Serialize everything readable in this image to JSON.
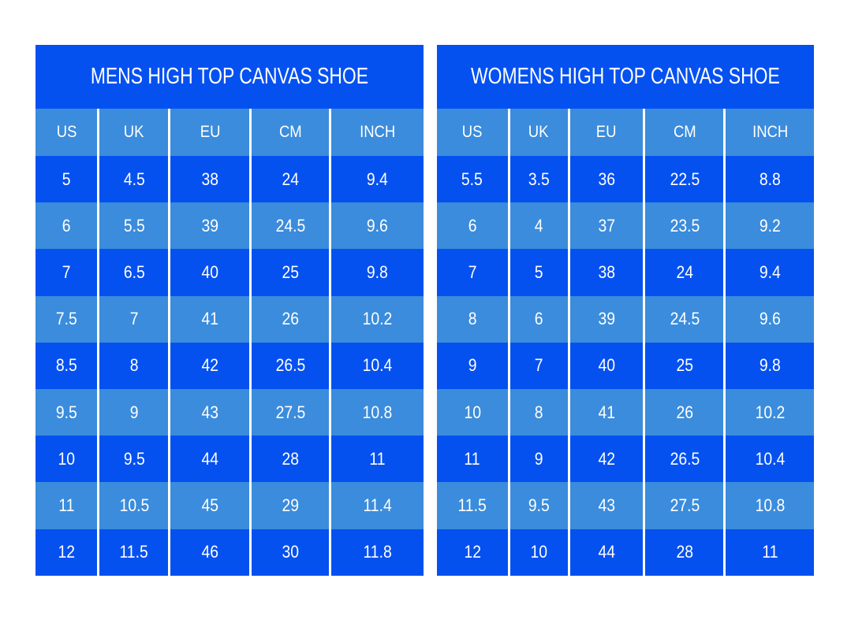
{
  "colors": {
    "dark_blue": "#0551F0",
    "light_blue": "#3B8CDC",
    "text": "#FFFFFF",
    "separator": "#FFFFFF",
    "page_background": "#FFFFFF"
  },
  "chart_data": [
    {
      "type": "table",
      "title": "MENS HIGH TOP CANVAS SHOE",
      "columns": [
        "US",
        "UK",
        "EU",
        "CM",
        "INCH"
      ],
      "rows": [
        [
          "5",
          "4.5",
          "38",
          "24",
          "9.4"
        ],
        [
          "6",
          "5.5",
          "39",
          "24.5",
          "9.6"
        ],
        [
          "7",
          "6.5",
          "40",
          "25",
          "9.8"
        ],
        [
          "7.5",
          "7",
          "41",
          "26",
          "10.2"
        ],
        [
          "8.5",
          "8",
          "42",
          "26.5",
          "10.4"
        ],
        [
          "9.5",
          "9",
          "43",
          "27.5",
          "10.8"
        ],
        [
          "10",
          "9.5",
          "44",
          "28",
          "11"
        ],
        [
          "11",
          "10.5",
          "45",
          "29",
          "11.4"
        ],
        [
          "12",
          "11.5",
          "46",
          "30",
          "11.8"
        ]
      ],
      "layout": {
        "row_striping": "odd-dark-even-light",
        "header_background": "light_blue",
        "title_background": "dark_blue"
      }
    },
    {
      "type": "table",
      "title": "WOMENS HIGH TOP CANVAS SHOE",
      "columns": [
        "US",
        "UK",
        "EU",
        "CM",
        "INCH"
      ],
      "rows": [
        [
          "5.5",
          "3.5",
          "36",
          "22.5",
          "8.8"
        ],
        [
          "6",
          "4",
          "37",
          "23.5",
          "9.2"
        ],
        [
          "7",
          "5",
          "38",
          "24",
          "9.4"
        ],
        [
          "8",
          "6",
          "39",
          "24.5",
          "9.6"
        ],
        [
          "9",
          "7",
          "40",
          "25",
          "9.8"
        ],
        [
          "10",
          "8",
          "41",
          "26",
          "10.2"
        ],
        [
          "11",
          "9",
          "42",
          "26.5",
          "10.4"
        ],
        [
          "11.5",
          "9.5",
          "43",
          "27.5",
          "10.8"
        ],
        [
          "12",
          "10",
          "44",
          "28",
          "11"
        ]
      ],
      "layout": {
        "row_striping": "odd-dark-even-light",
        "header_background": "light_blue",
        "title_background": "dark_blue"
      }
    }
  ]
}
